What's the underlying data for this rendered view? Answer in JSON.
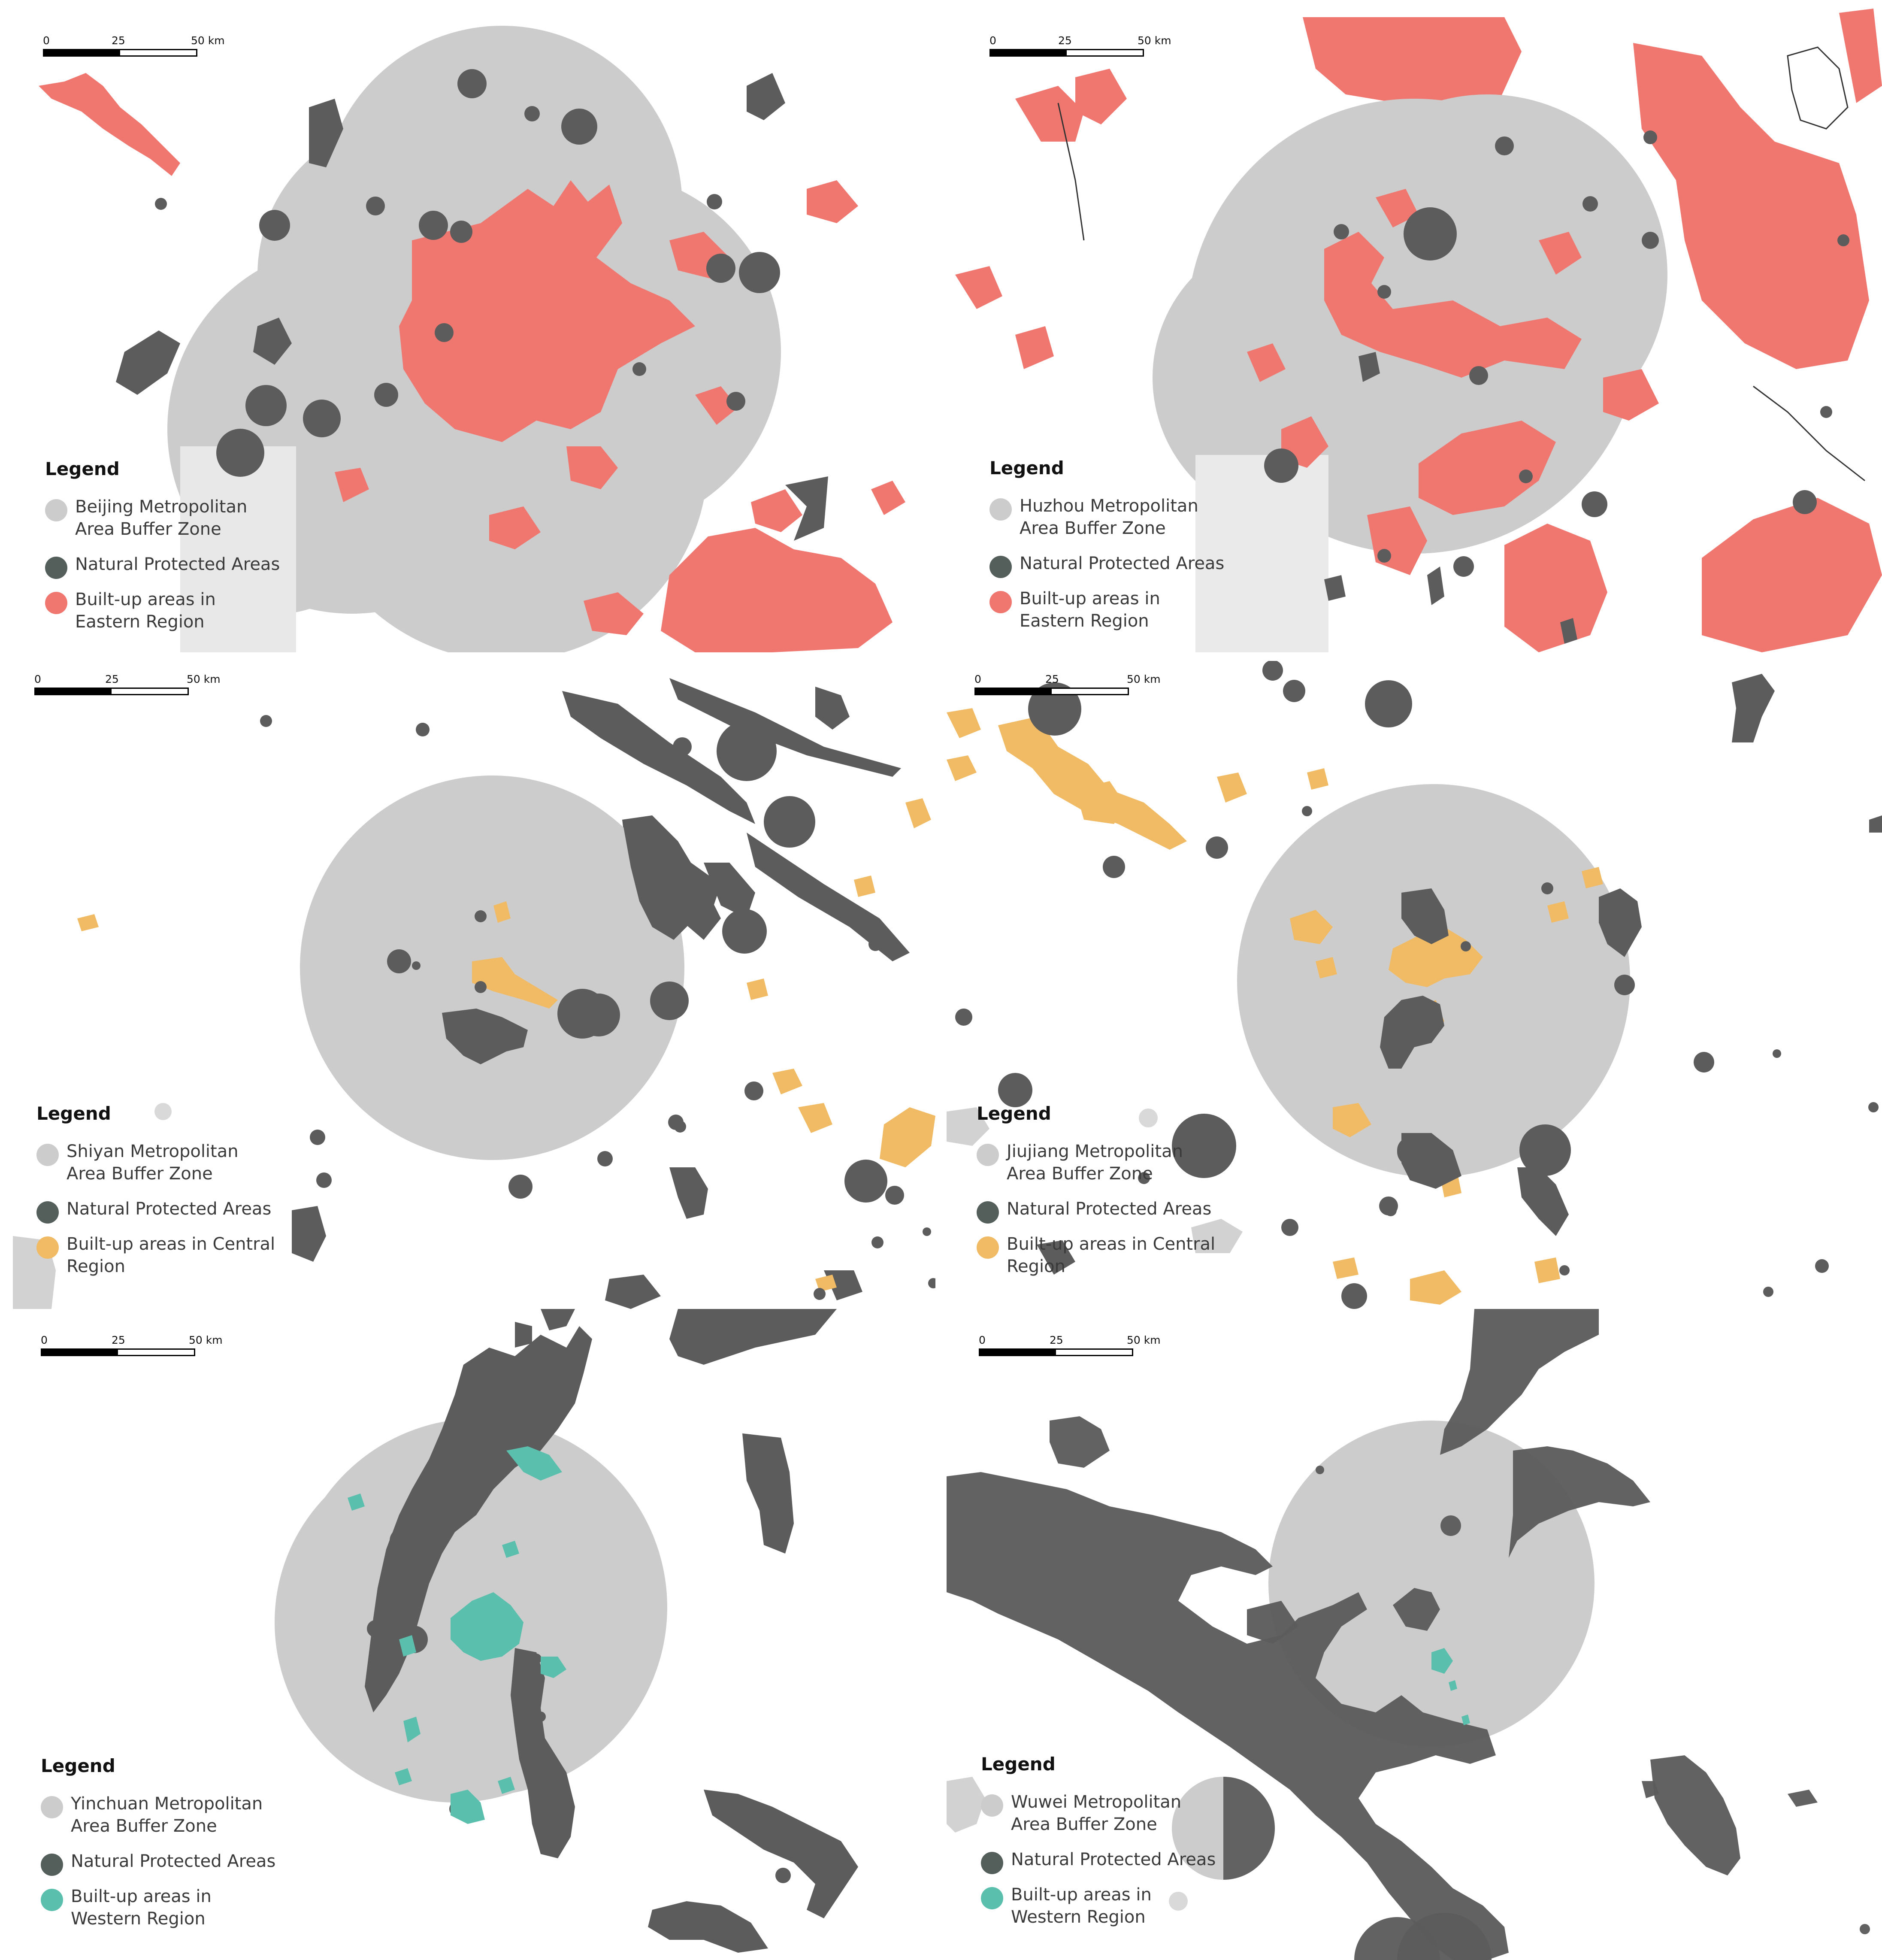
{
  "colors": {
    "buffer": "#cccccc",
    "protected": "#5c5c5c",
    "eastern": "#f07770",
    "central": "#f1bb66",
    "western": "#5bbfae",
    "legend_protected": "#545f5c"
  },
  "scale_ticks": [
    "0",
    "25",
    "50 km"
  ],
  "legend_title": "Legend",
  "panels": [
    {
      "city": "Beijing",
      "region_color": "eastern",
      "items": [
        {
          "label": "Beijing Metropolitan Area Buffer Zone",
          "swatch": "buffer"
        },
        {
          "label": "Natural Protected Areas",
          "swatch": "legend_protected"
        },
        {
          "label": "Built-up areas in Eastern Region",
          "swatch": "eastern"
        }
      ]
    },
    {
      "city": "Huzhou",
      "region_color": "eastern",
      "items": [
        {
          "label": "Huzhou Metropolitan Area Buffer Zone",
          "swatch": "buffer"
        },
        {
          "label": "Natural Protected Areas",
          "swatch": "legend_protected"
        },
        {
          "label": "Built-up areas in Eastern Region",
          "swatch": "eastern"
        }
      ]
    },
    {
      "city": "Shiyan",
      "region_color": "central",
      "items": [
        {
          "label": "Shiyan Metropolitan Area Buffer Zone",
          "swatch": "buffer"
        },
        {
          "label": "Natural Protected Areas",
          "swatch": "legend_protected"
        },
        {
          "label": "Built-up areas in Central Region",
          "swatch": "central"
        }
      ]
    },
    {
      "city": "Jiujiang",
      "region_color": "central",
      "items": [
        {
          "label": "Jiujiang Metropolitan Area Buffer Zone",
          "swatch": "buffer"
        },
        {
          "label": "Natural Protected Areas",
          "swatch": "legend_protected"
        },
        {
          "label": "Built-up areas in Central Region",
          "swatch": "central"
        }
      ]
    },
    {
      "city": "Yinchuan",
      "region_color": "western",
      "items": [
        {
          "label": "Yinchuan Metropolitan Area Buffer Zone",
          "swatch": "buffer"
        },
        {
          "label": "Natural Protected Areas",
          "swatch": "legend_protected"
        },
        {
          "label": "Built-up areas in Western Region",
          "swatch": "western"
        }
      ]
    },
    {
      "city": "Wuwei",
      "region_color": "western",
      "items": [
        {
          "label": "Wuwei Metropolitan Area Buffer Zone",
          "swatch": "buffer"
        },
        {
          "label": "Natural Protected Areas",
          "swatch": "legend_protected"
        },
        {
          "label": "Built-up areas in Western Region",
          "swatch": "western"
        }
      ]
    }
  ]
}
